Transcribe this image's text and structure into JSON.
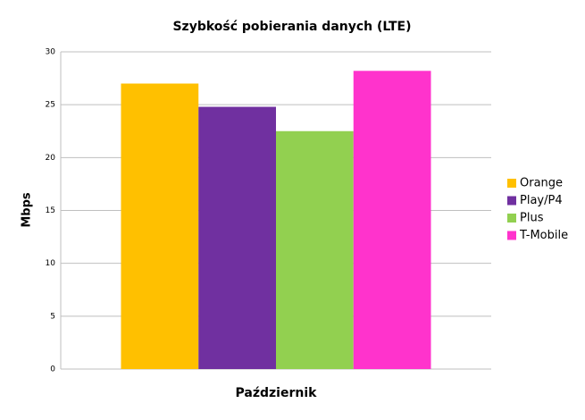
{
  "chart_data": {
    "type": "bar",
    "title": "Szybkość pobierania danych (LTE)",
    "y_label": "Mbps",
    "categories": [
      "Październik"
    ],
    "series": [
      {
        "name": "Orange",
        "color": "#ffc000",
        "values": [
          27.0
        ]
      },
      {
        "name": "Play/P4",
        "color": "#7030a0",
        "values": [
          24.8
        ]
      },
      {
        "name": "Plus",
        "color": "#92d050",
        "values": [
          22.5
        ]
      },
      {
        "name": "T-Mobile",
        "color": "#ff33cc",
        "values": [
          28.2
        ]
      }
    ],
    "ylim": [
      0,
      30
    ],
    "yticks": [
      0,
      5,
      10,
      15,
      20,
      25,
      30
    ],
    "grid": true,
    "legend": "right"
  }
}
